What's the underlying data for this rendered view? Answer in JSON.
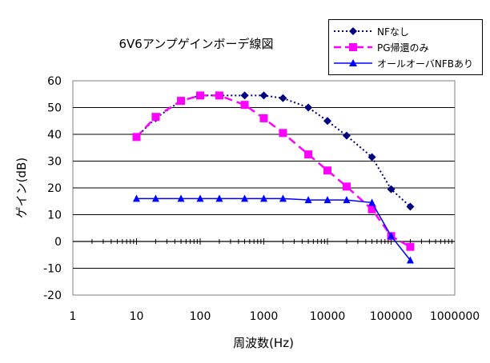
{
  "chart_data": {
    "type": "line",
    "title": "6V6アンプゲインボーデ線図",
    "xlabel": "周波数(Hz)",
    "ylabel": "ゲイン(dB)",
    "xscale": "log",
    "xlim": [
      1,
      1000000
    ],
    "ylim": [
      -20,
      60
    ],
    "xticks": [
      "1",
      "10",
      "100",
      "1000",
      "10000",
      "100000",
      "1000000"
    ],
    "yticks": [
      "60",
      "50",
      "40",
      "30",
      "20",
      "10",
      "0",
      "-10",
      "-20"
    ],
    "grid": "horizontal",
    "legend_position": "top-right",
    "series": [
      {
        "name": "NFなし",
        "color": "#000080",
        "marker": "diamond",
        "line_style": "dotted",
        "x": [
          10,
          20,
          50,
          100,
          200,
          500,
          1000,
          2000,
          5000,
          10000,
          20000,
          50000,
          100000,
          200000
        ],
        "y": [
          39,
          46,
          52.5,
          54.5,
          54.5,
          54.5,
          54.5,
          53.5,
          50,
          45,
          39.5,
          31.5,
          19.5,
          13
        ]
      },
      {
        "name": "PG帰還のみ",
        "color": "#ff00ff",
        "marker": "square",
        "line_style": "dashed",
        "x": [
          10,
          20,
          50,
          100,
          200,
          500,
          1000,
          2000,
          5000,
          10000,
          20000,
          50000,
          100000,
          200000
        ],
        "y": [
          39,
          46.5,
          52.5,
          54.5,
          54.5,
          51,
          46,
          40.5,
          32.5,
          26.5,
          20.5,
          12,
          2,
          -2
        ]
      },
      {
        "name": "オールオーバNFBあり",
        "color": "#0000ff",
        "marker": "triangle",
        "line_style": "solid",
        "x": [
          10,
          20,
          50,
          100,
          200,
          500,
          1000,
          2000,
          5000,
          10000,
          20000,
          50000,
          100000,
          200000
        ],
        "y": [
          16,
          16,
          16,
          16,
          16,
          16,
          16,
          16,
          15.5,
          15.5,
          15.5,
          14.5,
          2,
          -7
        ]
      }
    ]
  }
}
